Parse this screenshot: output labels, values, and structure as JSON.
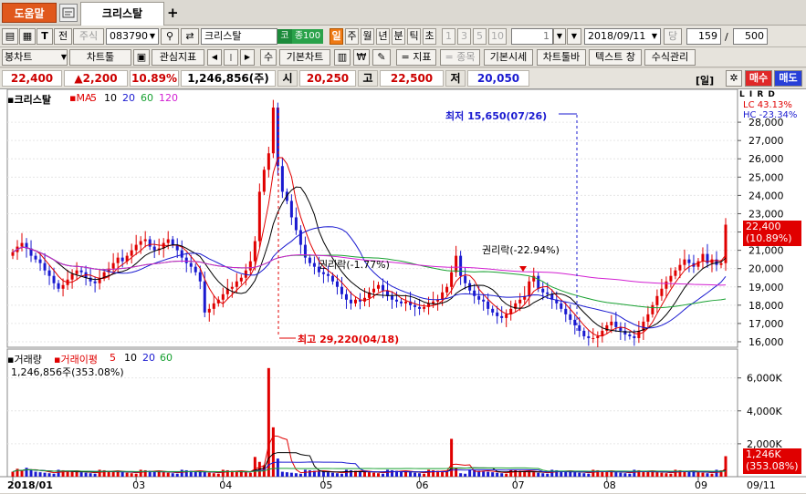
{
  "tabbar": {
    "help": "도움말",
    "active_tab": "크리스탈",
    "add": "+"
  },
  "toolbar1": {
    "mode": "전",
    "market": "주식",
    "code": "083790",
    "name": "크리스탈",
    "market_badge": "코",
    "badge_class": "종100",
    "periods": [
      "일",
      "주",
      "월",
      "년",
      "분",
      "틱",
      "초"
    ],
    "active_period": "일",
    "units": [
      "1",
      "3",
      "5",
      "10"
    ],
    "unit_value": "1",
    "date": "2018/09/11",
    "count_label": "당",
    "count": "159",
    "total": "500"
  },
  "toolbar2": {
    "chart_type": "봉차트",
    "chart_tool": "차트툴",
    "watch": "관심지표",
    "su": "수",
    "basic_chart": "기본차트",
    "won": "₩",
    "indicator": "= 지표",
    "stock": "= 종목",
    "basic_price": "기본시세",
    "chart_toolbar": "차트툴바",
    "text_window": "텍스트 창",
    "formula": "수식관리"
  },
  "quote": {
    "price": "22,400",
    "change": "▲2,200",
    "rate": "10.89%",
    "volume": "1,246,856(주)",
    "open_label": "시",
    "open": "20,250",
    "high_label": "고",
    "high": "22,500",
    "low_label": "저",
    "low": "20,050",
    "period_tag": "[일]",
    "buy": "매수",
    "sell": "매도"
  },
  "price_panel": {
    "name": "크리스탈",
    "ma_label": "MA",
    "ma_periods": [
      "5",
      "10",
      "20",
      "60",
      "120"
    ],
    "lc": "LC  43.13%",
    "hc": "HC -23.34%",
    "annotations": {
      "low": "최저 15,650(07/26)",
      "high": "최고 29,220(04/18)",
      "right1": "권리락(-1.77%)",
      "right2": "권리락(-22.94%)"
    },
    "last_price": "22,400",
    "last_rate": "(10.89%)",
    "axis_tags": "L I R D"
  },
  "volume_panel": {
    "name": "거래량",
    "ma_label": "거래이평",
    "ma_periods": [
      "5",
      "10",
      "20",
      "60"
    ],
    "value": "1,246,856주(353.08%)",
    "last": "1,246K",
    "last_rate": "(353.08%)"
  },
  "chart_data": [
    {
      "type": "candlestick",
      "title": "크리스탈",
      "x": [
        "2018/01",
        "03",
        "04",
        "05",
        "06",
        "07",
        "08",
        "09"
      ],
      "ylim": [
        16000,
        28000
      ],
      "yticks": [
        16000,
        17000,
        18000,
        19000,
        20000,
        21000,
        22000,
        23000,
        24000,
        25000,
        26000,
        27000,
        28000
      ],
      "closes": [
        20900,
        21200,
        21400,
        21100,
        20700,
        20500,
        20300,
        19900,
        19600,
        19200,
        18900,
        19100,
        19400,
        19700,
        19900,
        19800,
        19500,
        19300,
        19200,
        19500,
        19800,
        20000,
        20300,
        20600,
        20400,
        20700,
        21000,
        21300,
        21500,
        21600,
        21200,
        21000,
        21100,
        21400,
        21600,
        21300,
        21000,
        20600,
        20300,
        20100,
        19800,
        19300,
        17600,
        17800,
        18100,
        18300,
        18600,
        18900,
        19000,
        19300,
        19500,
        19900,
        20400,
        21500,
        24200,
        25400,
        26300,
        28800,
        25600,
        24200,
        23700,
        22800,
        22100,
        21300,
        20600,
        20300,
        20100,
        19800,
        19700,
        19600,
        19300,
        19000,
        18600,
        18300,
        18100,
        18300,
        18200,
        18400,
        18700,
        18900,
        19100,
        18800,
        18500,
        18300,
        18200,
        18100,
        18200,
        18000,
        17900,
        17800,
        17900,
        18100,
        18200,
        18300,
        18700,
        19000,
        19800,
        20700,
        19600,
        19200,
        18800,
        18500,
        18300,
        18200,
        17800,
        17600,
        17400,
        17300,
        17500,
        17800,
        18100,
        18300,
        18500,
        19300,
        19600,
        18900,
        18700,
        18600,
        18300,
        18100,
        17800,
        17500,
        17200,
        16900,
        16600,
        16300,
        16200,
        16200,
        16300,
        16600,
        16900,
        17100,
        16800,
        16600,
        16400,
        16300,
        16200,
        16600,
        17100,
        17500,
        18000,
        18500,
        18900,
        19300,
        19600,
        19900,
        20200,
        20500,
        20300,
        20100,
        20400,
        20800,
        20300,
        20500,
        20200,
        20300,
        22400
      ],
      "ma": [
        {
          "name": "5"
        },
        {
          "name": "10"
        },
        {
          "name": "20"
        },
        {
          "name": "60"
        },
        {
          "name": "120"
        }
      ],
      "annotations": [
        "최저 15,650(07/26)",
        "최고 29,220(04/18)",
        "권리락(-1.77%)",
        "권리락(-22.94%)"
      ]
    },
    {
      "type": "bar",
      "title": "거래량",
      "ylim": [
        0,
        7000
      ],
      "yticks": [
        "2,000K",
        "4,000K",
        "6,000K"
      ],
      "last_value": "1,246K"
    }
  ],
  "xaxis": {
    "labels": [
      "2018/01",
      "03",
      "04",
      "05",
      "06",
      "07",
      "08",
      "09"
    ],
    "last_date": "09/11"
  },
  "colors": {
    "up": "#e00000",
    "down": "#1a1ad0",
    "ma5": "#e00000",
    "ma10": "#000000",
    "ma20": "#1a1ad0",
    "ma60": "#17a030",
    "ma120": "#d21fd2",
    "accent": "#ef7a14"
  }
}
